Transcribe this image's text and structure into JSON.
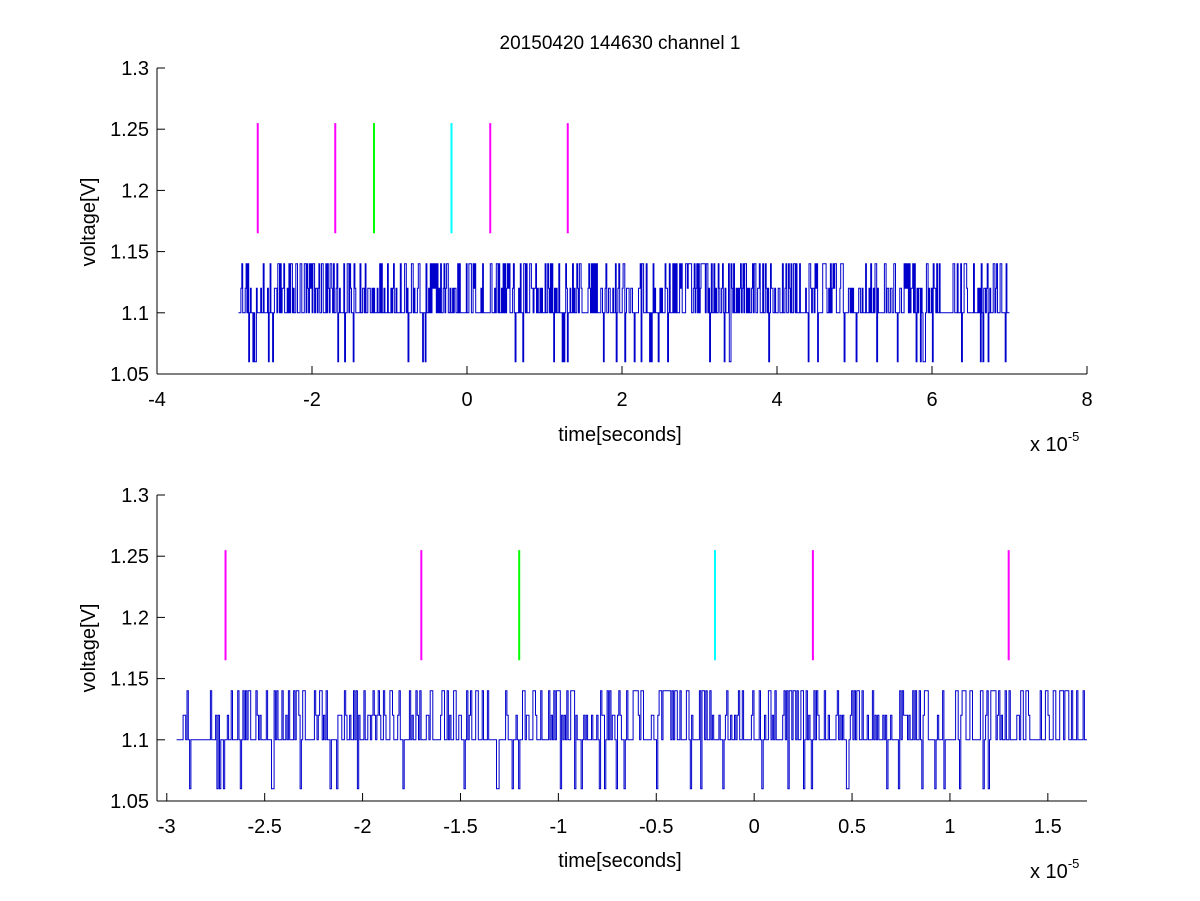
{
  "colors": {
    "background": "#ffffff",
    "axes": "#000000",
    "signal": "#0000cc",
    "marker_magenta": "#ff00ff",
    "marker_green": "#00ff00",
    "marker_cyan": "#00ffff"
  },
  "chart_data": [
    {
      "type": "line",
      "title": "20150420 144630 channel 1",
      "xlabel": "time[seconds]",
      "ylabel": "voltage[V]",
      "x_multiplier_label": "x 10",
      "x_multiplier_exponent": "-5",
      "xlim": [
        -4,
        8
      ],
      "ylim": [
        1.05,
        1.3
      ],
      "x_unit_scale": 1e-05,
      "xticks": [
        -4,
        -2,
        0,
        2,
        4,
        6,
        8
      ],
      "xtick_labels": [
        "-4",
        "-2",
        "0",
        "2",
        "4",
        "6",
        "8"
      ],
      "yticks": [
        1.05,
        1.1,
        1.15,
        1.2,
        1.25,
        1.3
      ],
      "ytick_labels": [
        "1.05",
        "1.1",
        "1.15",
        "1.2",
        "1.25",
        "1.3"
      ],
      "grid": false,
      "series": [
        {
          "color": "#0000cc",
          "x_range": [
            -2.95,
            7.0
          ],
          "levels": [
            1.06,
            1.1,
            1.12,
            1.14
          ],
          "note_values": "dense noisy square-wave signal between 1.06 and 1.14 V"
        }
      ],
      "markers": [
        {
          "x": -2.7,
          "y_from": 1.165,
          "y_to": 1.255,
          "color": "#ff00ff"
        },
        {
          "x": -1.7,
          "y_from": 1.165,
          "y_to": 1.255,
          "color": "#ff00ff"
        },
        {
          "x": -1.2,
          "y_from": 1.165,
          "y_to": 1.255,
          "color": "#00ff00"
        },
        {
          "x": -0.2,
          "y_from": 1.165,
          "y_to": 1.255,
          "color": "#00ffff"
        },
        {
          "x": 0.3,
          "y_from": 1.165,
          "y_to": 1.255,
          "color": "#ff00ff"
        },
        {
          "x": 1.3,
          "y_from": 1.165,
          "y_to": 1.255,
          "color": "#ff00ff"
        }
      ]
    },
    {
      "type": "line",
      "title": "",
      "xlabel": "time[seconds]",
      "ylabel": "voltage[V]",
      "x_multiplier_label": "x 10",
      "x_multiplier_exponent": "-5",
      "xlim": [
        -3.05,
        1.7
      ],
      "ylim": [
        1.05,
        1.3
      ],
      "x_unit_scale": 1e-05,
      "xticks": [
        -3,
        -2.5,
        -2,
        -1.5,
        -1,
        -0.5,
        0,
        0.5,
        1,
        1.5
      ],
      "xtick_labels": [
        "-3",
        "-2.5",
        "-2",
        "-1.5",
        "-1",
        "-0.5",
        "0",
        "0.5",
        "1",
        "1.5"
      ],
      "yticks": [
        1.05,
        1.1,
        1.15,
        1.2,
        1.25,
        1.3
      ],
      "ytick_labels": [
        "1.05",
        "1.1",
        "1.15",
        "1.2",
        "1.25",
        "1.3"
      ],
      "grid": false,
      "series": [
        {
          "color": "#0000cc",
          "x_range": [
            -2.95,
            1.7
          ],
          "levels": [
            1.06,
            1.1,
            1.12,
            1.14
          ],
          "note_values": "zoomed view of the same signal"
        }
      ],
      "markers": [
        {
          "x": -2.7,
          "y_from": 1.165,
          "y_to": 1.255,
          "color": "#ff00ff"
        },
        {
          "x": -1.7,
          "y_from": 1.165,
          "y_to": 1.255,
          "color": "#ff00ff"
        },
        {
          "x": -1.2,
          "y_from": 1.165,
          "y_to": 1.255,
          "color": "#00ff00"
        },
        {
          "x": -0.2,
          "y_from": 1.165,
          "y_to": 1.255,
          "color": "#00ffff"
        },
        {
          "x": 0.3,
          "y_from": 1.165,
          "y_to": 1.255,
          "color": "#ff00ff"
        },
        {
          "x": 1.3,
          "y_from": 1.165,
          "y_to": 1.255,
          "color": "#ff00ff"
        }
      ]
    }
  ]
}
